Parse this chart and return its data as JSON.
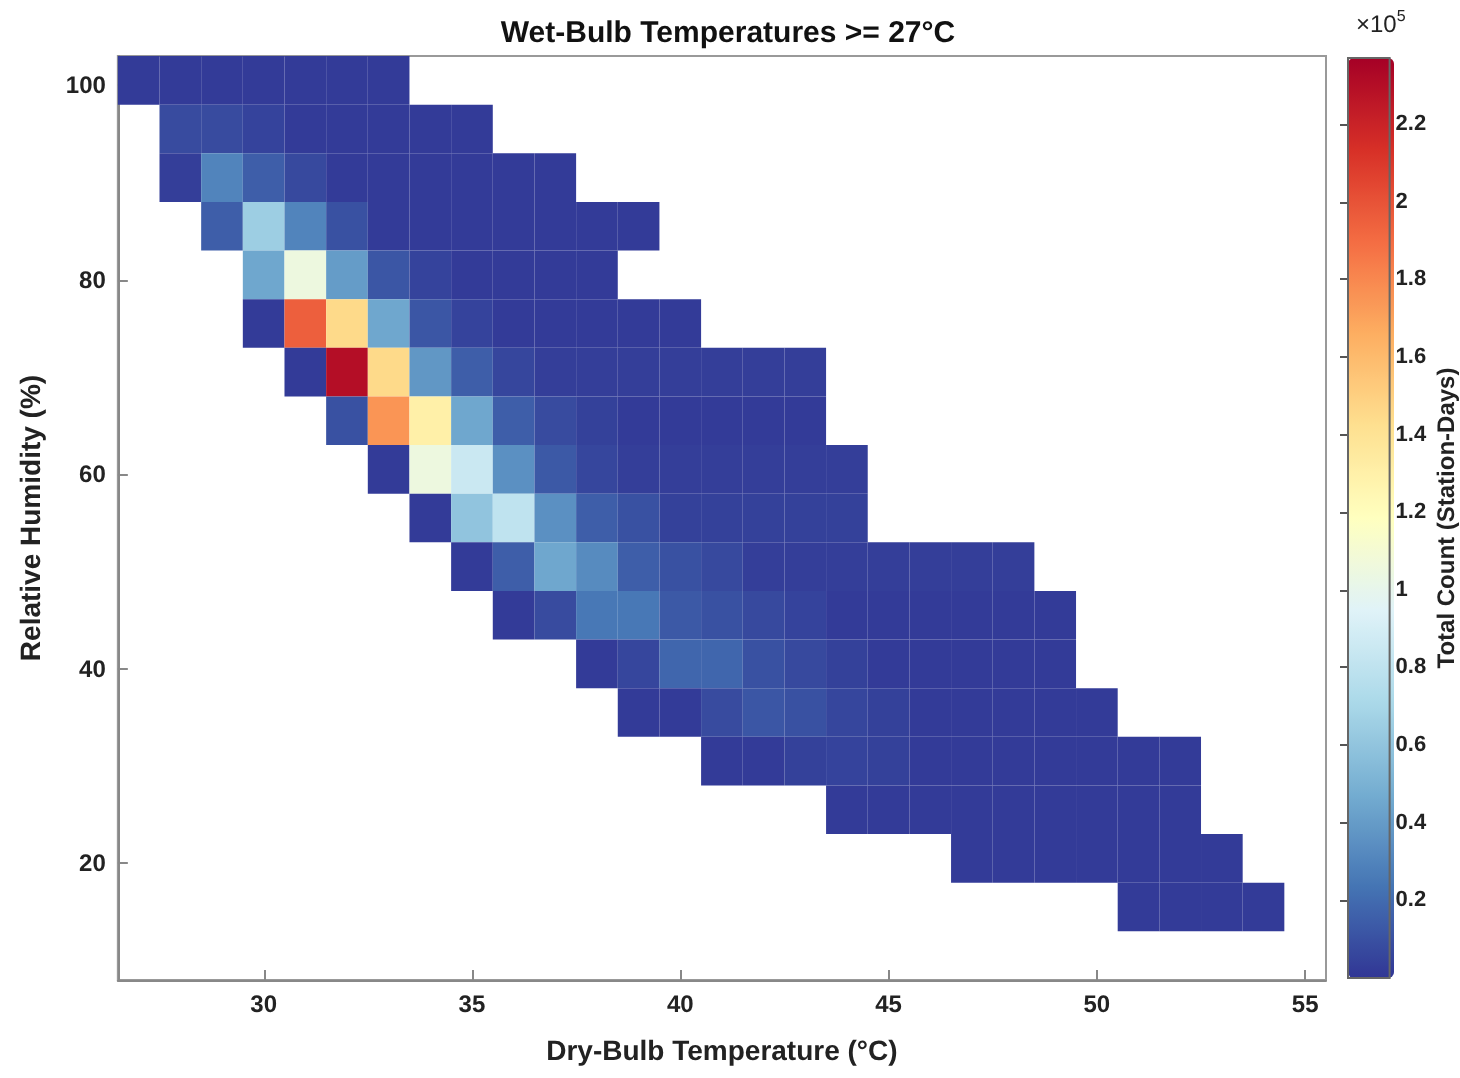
{
  "chart_data": {
    "type": "heatmap",
    "title": "Wet-Bulb Temperatures >= 27°C",
    "xlabel": "Dry-Bulb Temperature (°C)",
    "ylabel": "Relative Humidity (%)",
    "clabel": "Total Count (Station-Days)",
    "annotations": [
      "×10$^{5}$"
    ],
    "x": [
      27,
      28,
      29,
      30,
      31,
      32,
      33,
      34,
      35,
      36,
      37,
      38,
      39,
      40,
      41,
      42,
      43,
      44,
      45,
      46,
      47,
      48,
      49,
      50,
      51,
      52,
      53,
      54
    ],
    "y": [
      100.5,
      95.5,
      90.5,
      85.5,
      80.5,
      75.5,
      70.5,
      65.5,
      60.5,
      55.5,
      50.5,
      45.5,
      40.5,
      35.5,
      30.5,
      25.5,
      20.5,
      15.5
    ],
    "cells": [
      [
        0.02,
        0.02,
        0.02,
        0.02,
        0.02,
        0.02,
        0.02,
        null,
        null,
        null,
        null,
        null,
        null,
        null,
        null,
        null,
        null,
        null,
        null,
        null,
        null,
        null,
        null,
        null,
        null,
        null,
        null,
        null
      ],
      [
        null,
        0.08,
        0.08,
        0.05,
        0.02,
        0.02,
        0.02,
        0.02,
        0.02,
        null,
        null,
        null,
        null,
        null,
        null,
        null,
        null,
        null,
        null,
        null,
        null,
        null,
        null,
        null,
        null,
        null,
        null,
        null
      ],
      [
        null,
        0.03,
        0.3,
        0.15,
        0.07,
        0.02,
        0.02,
        0.02,
        0.02,
        0.02,
        0.02,
        null,
        null,
        null,
        null,
        null,
        null,
        null,
        null,
        null,
        null,
        null,
        null,
        null,
        null,
        null,
        null,
        null
      ],
      [
        null,
        null,
        0.15,
        0.65,
        0.3,
        0.1,
        0.02,
        0.02,
        0.02,
        0.02,
        0.02,
        0.02,
        0.02,
        null,
        null,
        null,
        null,
        null,
        null,
        null,
        null,
        null,
        null,
        null,
        null,
        null,
        null,
        null
      ],
      [
        null,
        null,
        null,
        0.45,
        1.05,
        0.4,
        0.12,
        0.05,
        0.02,
        0.02,
        0.02,
        0.02,
        null,
        null,
        null,
        null,
        null,
        null,
        null,
        null,
        null,
        null,
        null,
        null,
        null,
        null,
        null,
        null
      ],
      [
        null,
        null,
        null,
        0.02,
        1.95,
        1.45,
        0.45,
        0.12,
        0.05,
        0.02,
        0.02,
        0.02,
        0.02,
        0.02,
        null,
        null,
        null,
        null,
        null,
        null,
        null,
        null,
        null,
        null,
        null,
        null,
        null,
        null
      ],
      [
        null,
        null,
        null,
        null,
        0.02,
        2.3,
        1.45,
        0.38,
        0.15,
        0.06,
        0.03,
        0.03,
        0.03,
        0.03,
        0.03,
        0.03,
        0.03,
        null,
        null,
        null,
        null,
        null,
        null,
        null,
        null,
        null,
        null,
        null
      ],
      [
        null,
        null,
        null,
        null,
        null,
        0.1,
        1.75,
        1.3,
        0.45,
        0.15,
        0.08,
        0.04,
        0.02,
        0.02,
        0.02,
        0.02,
        0.02,
        null,
        null,
        null,
        null,
        null,
        null,
        null,
        null,
        null,
        null,
        null
      ],
      [
        null,
        null,
        null,
        null,
        null,
        null,
        0.02,
        1.05,
        0.85,
        0.35,
        0.13,
        0.06,
        0.03,
        0.03,
        0.03,
        0.03,
        0.03,
        0.03,
        null,
        null,
        null,
        null,
        null,
        null,
        null,
        null,
        null,
        null
      ],
      [
        null,
        null,
        null,
        null,
        null,
        null,
        null,
        0.02,
        0.6,
        0.8,
        0.35,
        0.15,
        0.1,
        0.04,
        0.04,
        0.04,
        0.04,
        0.04,
        null,
        null,
        null,
        null,
        null,
        null,
        null,
        null,
        null,
        null
      ],
      [
        null,
        null,
        null,
        null,
        null,
        null,
        null,
        null,
        0.02,
        0.15,
        0.45,
        0.33,
        0.15,
        0.1,
        0.07,
        0.03,
        0.03,
        0.03,
        0.03,
        0.03,
        0.03,
        0.03,
        null,
        null,
        null,
        null,
        null,
        null
      ],
      [
        null,
        null,
        null,
        null,
        null,
        null,
        null,
        null,
        null,
        0.02,
        0.08,
        0.25,
        0.25,
        0.13,
        0.1,
        0.07,
        0.05,
        0.02,
        0.02,
        0.02,
        0.02,
        0.02,
        0.02,
        null,
        null,
        null,
        null,
        null
      ],
      [
        null,
        null,
        null,
        null,
        null,
        null,
        null,
        null,
        null,
        null,
        null,
        0.02,
        0.06,
        0.18,
        0.18,
        0.1,
        0.07,
        0.04,
        0.02,
        0.02,
        0.02,
        0.02,
        0.02,
        null,
        null,
        null,
        null,
        null
      ],
      [
        null,
        null,
        null,
        null,
        null,
        null,
        null,
        null,
        null,
        null,
        null,
        null,
        0.02,
        0.02,
        0.08,
        0.12,
        0.1,
        0.06,
        0.04,
        0.02,
        0.02,
        0.02,
        0.02,
        0.02,
        null,
        null,
        null,
        null
      ],
      [
        null,
        null,
        null,
        null,
        null,
        null,
        null,
        null,
        null,
        null,
        null,
        null,
        null,
        null,
        0.02,
        0.02,
        0.04,
        0.05,
        0.04,
        0.02,
        0.02,
        0.02,
        0.02,
        0.02,
        0.02,
        0.02,
        null,
        null
      ],
      [
        null,
        null,
        null,
        null,
        null,
        null,
        null,
        null,
        null,
        null,
        null,
        null,
        null,
        null,
        null,
        null,
        null,
        0.02,
        0.02,
        0.02,
        0.02,
        0.02,
        0.02,
        0.02,
        0.02,
        0.02,
        null,
        null
      ],
      [
        null,
        null,
        null,
        null,
        null,
        null,
        null,
        null,
        null,
        null,
        null,
        null,
        null,
        null,
        null,
        null,
        null,
        null,
        null,
        null,
        0.02,
        0.02,
        0.02,
        0.02,
        0.02,
        0.02,
        0.02,
        null
      ],
      [
        null,
        null,
        null,
        null,
        null,
        null,
        null,
        null,
        null,
        null,
        null,
        null,
        null,
        null,
        null,
        null,
        null,
        null,
        null,
        null,
        null,
        null,
        null,
        null,
        0.02,
        0.02,
        0.02,
        0.02
      ]
    ],
    "xlim": [
      26.5,
      55.5
    ],
    "xticks": [
      30,
      35,
      40,
      45,
      50,
      55
    ],
    "ylim": [
      8,
      103
    ],
    "yticks": [
      20,
      40,
      60,
      80,
      100
    ],
    "clim": [
      0,
      2.37
    ],
    "cticks": [
      0.2,
      0.4,
      0.6,
      0.8,
      1,
      1.2,
      1.4,
      1.6,
      1.8,
      2,
      2.2
    ]
  }
}
